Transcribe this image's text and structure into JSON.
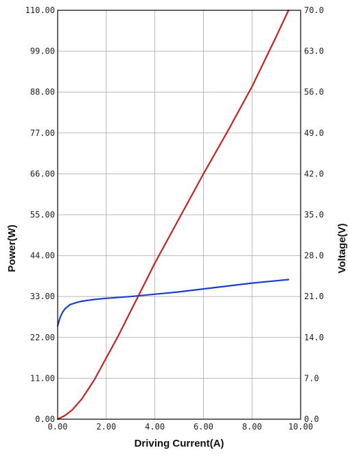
{
  "chart_data": {
    "type": "line",
    "xlabel": "Driving Current(A)",
    "ylabel_left": "Power(W)",
    "ylabel_right": "Voltage(V)",
    "xlim": [
      0,
      10
    ],
    "ylim_left": [
      0,
      110
    ],
    "ylim_right": [
      0,
      70
    ],
    "grid": true,
    "x_ticks": [
      "0.00",
      "2.00",
      "4.00",
      "6.00",
      "8.00",
      "10.00"
    ],
    "y_left_ticks": [
      "0.00",
      "11.00",
      "22.00",
      "33.00",
      "44.00",
      "55.00",
      "66.00",
      "77.00",
      "88.00",
      "99.00",
      "110.00"
    ],
    "y_right_ticks": [
      "0.0",
      "7.0",
      "14.0",
      "21.0",
      "28.0",
      "35.0",
      "42.0",
      "49.0",
      "56.0",
      "63.0",
      "70.0"
    ],
    "series": [
      {
        "axis": "left",
        "color": "#cc2020",
        "x": [
          0,
          0.3,
          0.6,
          1.0,
          1.5,
          2.0,
          2.5,
          3.0,
          3.5,
          4.0,
          5.0,
          6.0,
          7.0,
          8.0,
          9.0,
          9.5
        ],
        "y": [
          0,
          1.0,
          2.5,
          5.5,
          10.5,
          16.5,
          22.5,
          29.0,
          35.5,
          42.0,
          54.0,
          66.0,
          77.5,
          89.5,
          103.0,
          110.0
        ]
      },
      {
        "axis": "right",
        "color": "#1a3fcc",
        "x": [
          0,
          0.1,
          0.2,
          0.3,
          0.5,
          0.8,
          1.0,
          1.5,
          2.0,
          3.0,
          4.0,
          5.0,
          6.0,
          7.0,
          8.0,
          9.0,
          9.5
        ],
        "y": [
          16.0,
          17.4,
          18.3,
          18.9,
          19.6,
          20.0,
          20.2,
          20.5,
          20.7,
          21.0,
          21.4,
          21.8,
          22.3,
          22.8,
          23.3,
          23.7,
          23.9
        ]
      }
    ]
  }
}
